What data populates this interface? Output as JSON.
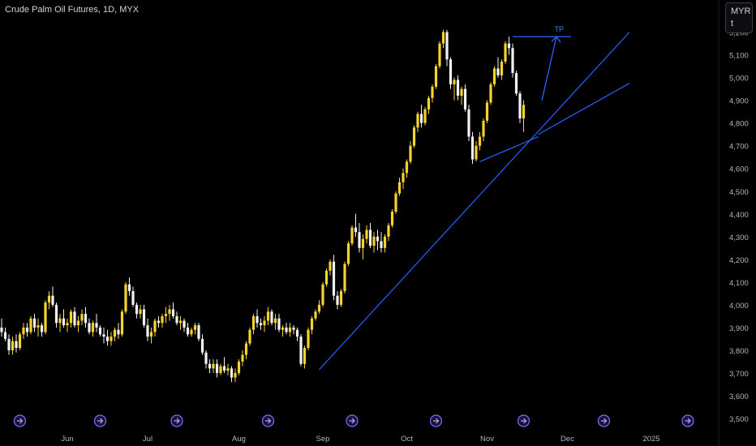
{
  "header": {
    "title": "Crude Palm Oil Futures, 1D, MYX"
  },
  "currency": {
    "code": "MYR",
    "unit": "t"
  },
  "annotations": {
    "tp_label": "TP"
  },
  "chart_data": {
    "type": "candlestick",
    "title": "Crude Palm Oil Futures, 1D, MYX",
    "ylabel": "",
    "ylim": [
      3450,
      5270
    ],
    "yticks": [
      3500,
      3600,
      3700,
      3800,
      3900,
      4000,
      4100,
      4200,
      4300,
      4400,
      4500,
      4600,
      4700,
      4800,
      4900,
      5000,
      5100,
      5200
    ],
    "x_labels": [
      {
        "label": "Jun",
        "index": 18
      },
      {
        "label": "Jul",
        "index": 40
      },
      {
        "label": "Aug",
        "index": 65
      },
      {
        "label": "Sep",
        "index": 88
      },
      {
        "label": "Oct",
        "index": 111
      },
      {
        "label": "Nov",
        "index": 133
      },
      {
        "label": "Dec",
        "index": 155
      },
      {
        "label": "2025",
        "index": 178
      }
    ],
    "x_count": 195,
    "events_at": [
      5,
      27,
      48,
      73,
      96,
      119,
      143,
      165,
      188
    ],
    "candles": [
      [
        3900,
        3940,
        3860,
        3880
      ],
      [
        3880,
        3900,
        3840,
        3850
      ],
      [
        3850,
        3870,
        3780,
        3800
      ],
      [
        3800,
        3860,
        3780,
        3840
      ],
      [
        3840,
        3870,
        3790,
        3810
      ],
      [
        3810,
        3880,
        3800,
        3870
      ],
      [
        3870,
        3920,
        3850,
        3900
      ],
      [
        3900,
        3920,
        3860,
        3880
      ],
      [
        3880,
        3950,
        3870,
        3940
      ],
      [
        3940,
        3960,
        3880,
        3900
      ],
      [
        3900,
        3940,
        3860,
        3910
      ],
      [
        3910,
        3920,
        3860,
        3880
      ],
      [
        3880,
        4020,
        3870,
        4010
      ],
      [
        4010,
        4060,
        3980,
        4040
      ],
      [
        4040,
        4080,
        3990,
        4000
      ],
      [
        4000,
        4010,
        3900,
        3920
      ],
      [
        3920,
        3960,
        3880,
        3940
      ],
      [
        3940,
        3980,
        3900,
        3910
      ],
      [
        3910,
        3940,
        3880,
        3920
      ],
      [
        3920,
        3980,
        3900,
        3970
      ],
      [
        3970,
        3990,
        3900,
        3910
      ],
      [
        3910,
        3950,
        3880,
        3930
      ],
      [
        3930,
        3980,
        3910,
        3960
      ],
      [
        3960,
        3990,
        3900,
        3920
      ],
      [
        3920,
        3940,
        3870,
        3880
      ],
      [
        3880,
        3930,
        3860,
        3920
      ],
      [
        3920,
        3960,
        3880,
        3900
      ],
      [
        3900,
        3910,
        3860,
        3870
      ],
      [
        3870,
        3900,
        3830,
        3860
      ],
      [
        3860,
        3890,
        3820,
        3840
      ],
      [
        3840,
        3880,
        3820,
        3860
      ],
      [
        3860,
        3900,
        3840,
        3890
      ],
      [
        3890,
        3920,
        3850,
        3870
      ],
      [
        3870,
        3980,
        3860,
        3970
      ],
      [
        3970,
        4100,
        3960,
        4090
      ],
      [
        4090,
        4120,
        4040,
        4060
      ],
      [
        4060,
        4080,
        3990,
        4000
      ],
      [
        4000,
        4010,
        3940,
        3960
      ],
      [
        3960,
        4000,
        3940,
        3980
      ],
      [
        3980,
        4000,
        3900,
        3910
      ],
      [
        3910,
        3940,
        3840,
        3860
      ],
      [
        3860,
        3900,
        3830,
        3880
      ],
      [
        3880,
        3940,
        3860,
        3930
      ],
      [
        3930,
        3950,
        3900,
        3920
      ],
      [
        3920,
        3960,
        3900,
        3950
      ],
      [
        3950,
        3990,
        3920,
        3960
      ],
      [
        3960,
        4000,
        3930,
        3980
      ],
      [
        3980,
        4010,
        3940,
        3950
      ],
      [
        3950,
        3970,
        3910,
        3920
      ],
      [
        3920,
        3950,
        3890,
        3930
      ],
      [
        3930,
        3940,
        3880,
        3900
      ],
      [
        3900,
        3920,
        3860,
        3870
      ],
      [
        3870,
        3900,
        3860,
        3890
      ],
      [
        3890,
        3920,
        3870,
        3910
      ],
      [
        3910,
        3920,
        3840,
        3850
      ],
      [
        3850,
        3870,
        3780,
        3790
      ],
      [
        3790,
        3800,
        3720,
        3740
      ],
      [
        3740,
        3760,
        3700,
        3720
      ],
      [
        3720,
        3760,
        3700,
        3740
      ],
      [
        3740,
        3760,
        3680,
        3700
      ],
      [
        3700,
        3740,
        3690,
        3730
      ],
      [
        3730,
        3770,
        3700,
        3710
      ],
      [
        3710,
        3740,
        3690,
        3720
      ],
      [
        3720,
        3730,
        3660,
        3680
      ],
      [
        3680,
        3720,
        3660,
        3700
      ],
      [
        3700,
        3760,
        3690,
        3750
      ],
      [
        3750,
        3800,
        3730,
        3780
      ],
      [
        3780,
        3840,
        3760,
        3830
      ],
      [
        3830,
        3900,
        3820,
        3890
      ],
      [
        3890,
        3960,
        3870,
        3950
      ],
      [
        3950,
        3980,
        3900,
        3920
      ],
      [
        3920,
        3940,
        3890,
        3910
      ],
      [
        3910,
        3950,
        3880,
        3930
      ],
      [
        3930,
        3990,
        3910,
        3970
      ],
      [
        3970,
        3980,
        3910,
        3920
      ],
      [
        3920,
        3960,
        3890,
        3940
      ],
      [
        3940,
        3960,
        3880,
        3890
      ],
      [
        3890,
        3910,
        3860,
        3900
      ],
      [
        3900,
        3920,
        3870,
        3880
      ],
      [
        3880,
        3920,
        3860,
        3900
      ],
      [
        3900,
        3910,
        3870,
        3890
      ],
      [
        3890,
        3900,
        3840,
        3860
      ],
      [
        3860,
        3870,
        3730,
        3740
      ],
      [
        3740,
        3820,
        3720,
        3810
      ],
      [
        3810,
        3900,
        3800,
        3890
      ],
      [
        3890,
        3950,
        3870,
        3940
      ],
      [
        3940,
        3980,
        3930,
        3970
      ],
      [
        3970,
        4020,
        3960,
        4000
      ],
      [
        4000,
        4100,
        3990,
        4090
      ],
      [
        4090,
        4160,
        4080,
        4150
      ],
      [
        4150,
        4200,
        4130,
        4190
      ],
      [
        4190,
        4220,
        4020,
        4040
      ],
      [
        4040,
        4060,
        3980,
        4000
      ],
      [
        4000,
        4070,
        3990,
        4060
      ],
      [
        4060,
        4190,
        4050,
        4180
      ],
      [
        4180,
        4280,
        4170,
        4270
      ],
      [
        4270,
        4350,
        4260,
        4340
      ],
      [
        4340,
        4400,
        4300,
        4320
      ],
      [
        4320,
        4360,
        4230,
        4250
      ],
      [
        4250,
        4310,
        4200,
        4290
      ],
      [
        4290,
        4350,
        4270,
        4330
      ],
      [
        4330,
        4360,
        4250,
        4260
      ],
      [
        4260,
        4320,
        4230,
        4300
      ],
      [
        4300,
        4330,
        4240,
        4280
      ],
      [
        4280,
        4320,
        4230,
        4250
      ],
      [
        4250,
        4310,
        4230,
        4300
      ],
      [
        4300,
        4360,
        4280,
        4350
      ],
      [
        4350,
        4420,
        4340,
        4410
      ],
      [
        4410,
        4500,
        4400,
        4490
      ],
      [
        4490,
        4560,
        4480,
        4540
      ],
      [
        4540,
        4600,
        4510,
        4580
      ],
      [
        4580,
        4640,
        4560,
        4630
      ],
      [
        4630,
        4720,
        4620,
        4700
      ],
      [
        4700,
        4790,
        4690,
        4780
      ],
      [
        4780,
        4850,
        4760,
        4840
      ],
      [
        4840,
        4880,
        4780,
        4800
      ],
      [
        4800,
        4870,
        4790,
        4860
      ],
      [
        4860,
        4920,
        4840,
        4910
      ],
      [
        4910,
        4970,
        4890,
        4960
      ],
      [
        4960,
        5060,
        4950,
        5050
      ],
      [
        5050,
        5160,
        5040,
        5150
      ],
      [
        5150,
        5210,
        5130,
        5200
      ],
      [
        5200,
        5210,
        5050,
        5080
      ],
      [
        5080,
        5090,
        4950,
        4970
      ],
      [
        4970,
        5000,
        4900,
        4990
      ],
      [
        4990,
        5010,
        4900,
        4920
      ],
      [
        4920,
        4960,
        4880,
        4950
      ],
      [
        4950,
        4970,
        4850,
        4860
      ],
      [
        4860,
        4880,
        4720,
        4740
      ],
      [
        4740,
        4760,
        4620,
        4640
      ],
      [
        4640,
        4720,
        4630,
        4700
      ],
      [
        4700,
        4760,
        4680,
        4740
      ],
      [
        4740,
        4820,
        4720,
        4810
      ],
      [
        4810,
        4900,
        4800,
        4890
      ],
      [
        4890,
        4980,
        4880,
        4970
      ],
      [
        4970,
        5050,
        4960,
        5040
      ],
      [
        5040,
        5090,
        5000,
        5010
      ],
      [
        5010,
        5080,
        4990,
        5070
      ],
      [
        5070,
        5160,
        5060,
        5150
      ],
      [
        5150,
        5180,
        5100,
        5130
      ],
      [
        5130,
        5150,
        5000,
        5020
      ],
      [
        5020,
        5030,
        4920,
        4930
      ],
      [
        4930,
        4940,
        4800,
        4820
      ],
      [
        4820,
        4900,
        4760,
        4880
      ]
    ],
    "trendlines": [
      {
        "from": [
          87,
          3715
        ],
        "to": [
          172,
          5200
        ]
      },
      {
        "from": [
          147,
          4750
        ],
        "to": [
          172,
          4975
        ]
      },
      {
        "from": [
          131,
          4630
        ],
        "to": [
          147,
          4740
        ]
      }
    ],
    "tp_level": 5180,
    "tp_path": {
      "from": [
        148,
        4900
      ],
      "to": [
        152,
        5180
      ]
    }
  }
}
